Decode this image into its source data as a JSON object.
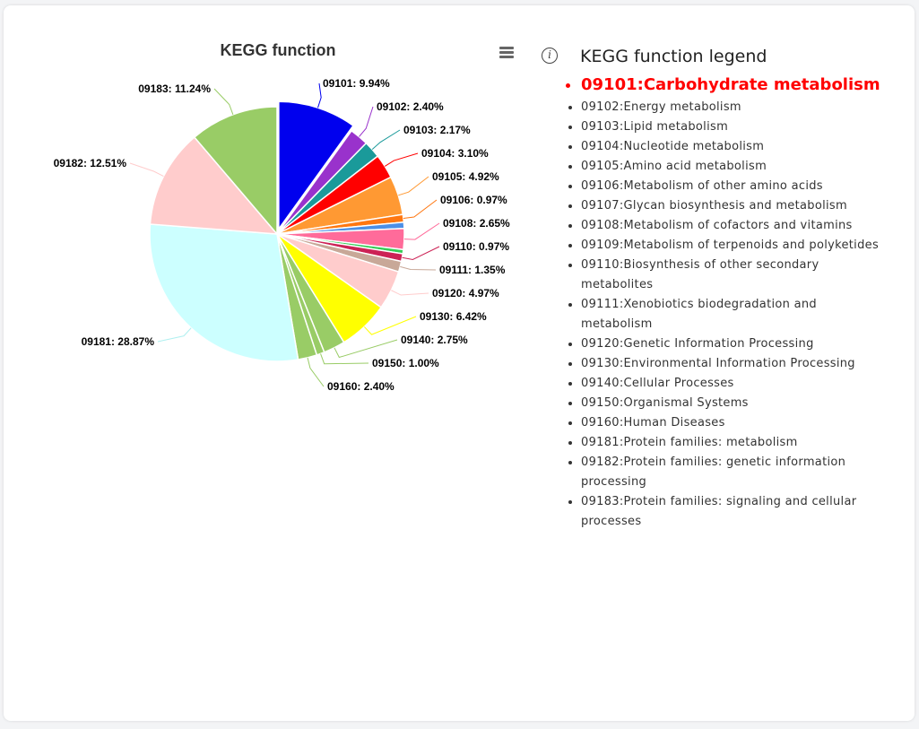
{
  "chart_data": {
    "type": "pie",
    "title": "KEGG function",
    "slices": [
      {
        "code": "09101",
        "value": 9.94,
        "color": "#0000ee",
        "label": "09101: 9.94%"
      },
      {
        "code": "09102",
        "value": 2.4,
        "color": "#9932cc",
        "label": "09102: 2.40%"
      },
      {
        "code": "09103",
        "value": 2.17,
        "color": "#1a9a9a",
        "label": "09103: 2.17%"
      },
      {
        "code": "09104",
        "value": 3.1,
        "color": "#ff0000",
        "label": "09104: 3.10%"
      },
      {
        "code": "09105",
        "value": 4.92,
        "color": "#ff9933",
        "label": "09105: 4.92%"
      },
      {
        "code": "09106",
        "value": 0.97,
        "color": "#ff7711",
        "label": "09106: 0.97%"
      },
      {
        "code": "09107",
        "value": 0.79,
        "color": "#4d8fe6",
        "label": ""
      },
      {
        "code": "09108",
        "value": 2.65,
        "color": "#ff6b9a",
        "label": "09108: 2.65%"
      },
      {
        "code": "09109",
        "value": 0.52,
        "color": "#33cc55",
        "label": ""
      },
      {
        "code": "09110",
        "value": 0.97,
        "color": "#cc2255",
        "label": "09110: 0.97%"
      },
      {
        "code": "09111",
        "value": 1.35,
        "color": "#c8a898",
        "label": "09111: 1.35%"
      },
      {
        "code": "09120",
        "value": 4.97,
        "color": "#ffcccc",
        "label": "09120: 4.97%"
      },
      {
        "code": "09130",
        "value": 6.42,
        "color": "#ffff00",
        "label": "09130: 6.42%"
      },
      {
        "code": "09140",
        "value": 2.75,
        "color": "#99cc66",
        "label": "09140: 2.75%"
      },
      {
        "code": "09150",
        "value": 1.0,
        "color": "#99cc66",
        "label": "09150: 1.00%"
      },
      {
        "code": "09160",
        "value": 2.4,
        "color": "#99cc66",
        "label": "09160: 2.40%"
      },
      {
        "code": "09181",
        "value": 28.87,
        "color": "#ccffff",
        "label": "09181: 28.87%"
      },
      {
        "code": "09182",
        "value": 12.51,
        "color": "#ffcccc",
        "label": "09182: 12.51%"
      },
      {
        "code": "09183",
        "value": 11.24,
        "color": "#99cc66",
        "label": "09183: 11.24%"
      }
    ],
    "highlighted": "09101"
  },
  "legend": {
    "title": "KEGG function legend",
    "info_icon": "info-icon",
    "items": [
      "09101:Carbohydrate metabolism",
      "09102:Energy metabolism",
      "09103:Lipid metabolism",
      "09104:Nucleotide metabolism",
      "09105:Amino acid metabolism",
      "09106:Metabolism of other amino acids",
      "09107:Glycan biosynthesis and metabolism",
      "09108:Metabolism of cofactors and vitamins",
      "09109:Metabolism of terpenoids and polyketides",
      "09110:Biosynthesis of other secondary metabolites",
      "09111:Xenobiotics biodegradation and metabolism",
      "09120:Genetic Information Processing",
      "09130:Environmental Information Processing",
      "09140:Cellular Processes",
      "09150:Organismal Systems",
      "09160:Human Diseases",
      "09181:Protein families: metabolism",
      "09182:Protein families: genetic information processing",
      "09183:Protein families: signaling and cellular processes"
    ]
  },
  "toolbar": {
    "menu_icon": "hamburger-menu-icon"
  },
  "colors": {
    "highlight": "#ff0000",
    "card": "#ffffff",
    "background": "#f3f4f6"
  }
}
